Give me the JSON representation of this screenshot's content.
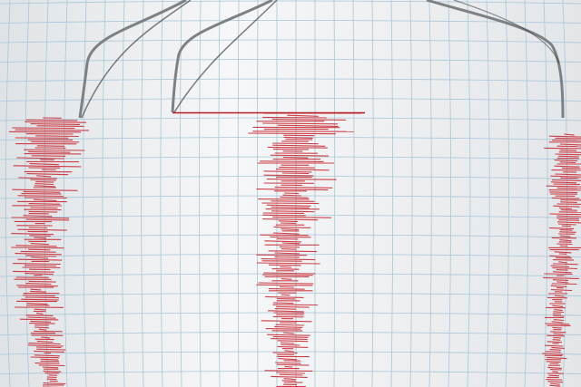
{
  "scene": {
    "subject": "seismograph",
    "colors": {
      "paper": "#f1f3f5",
      "grid": "#a9c6d6",
      "trace": "#c8202a",
      "needle": "#8a8d90"
    },
    "traces": [
      {
        "pen": "left",
        "spread": 0.9
      },
      {
        "pen": "middle",
        "spread": 1.0
      },
      {
        "pen": "right",
        "spread": 0.8
      }
    ]
  }
}
